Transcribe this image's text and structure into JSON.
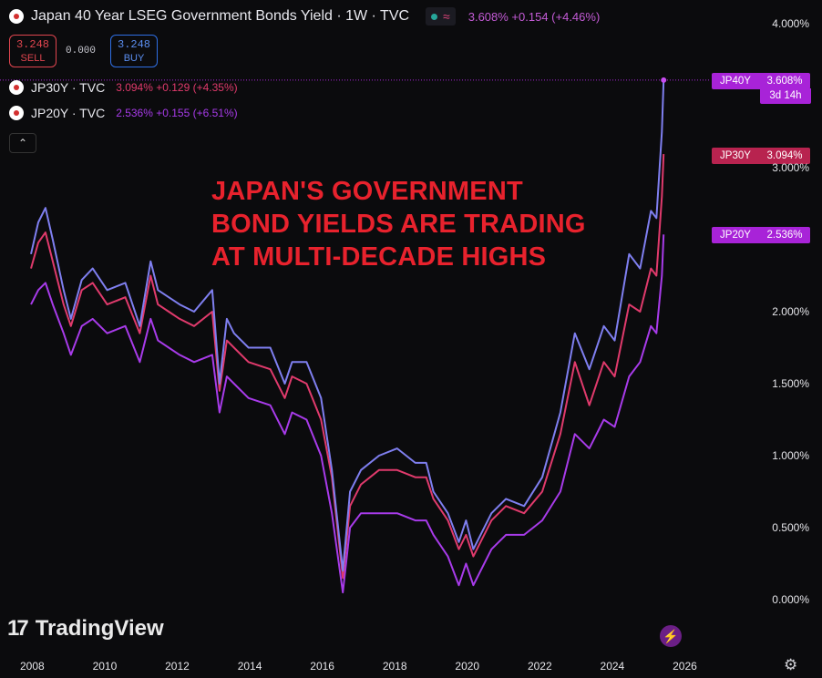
{
  "header": {
    "title": "Japan 40 Year LSEG Government Bonds Yield · 1W · TVC",
    "status_icon": "≈",
    "quote": "3.608% +0.154 (+4.46%)"
  },
  "trade": {
    "sell_price": "3.248",
    "sell_label": "SELL",
    "spread": "0.000",
    "buy_price": "3.248",
    "buy_label": "BUY"
  },
  "legend": [
    {
      "symbol": "JP30Y · TVC",
      "value": "3.094% +0.129 (+4.35%)",
      "color": "#e03a6c"
    },
    {
      "symbol": "JP20Y · TVC",
      "value": "2.536% +0.155 (+6.51%)",
      "color": "#a83bea"
    }
  ],
  "collapse_icon": "chevron-up-icon",
  "annotation": [
    "JAPAN'S GOVERNMENT",
    "BOND YIELDS ARE TRADING",
    "AT MULTI-DECADE HIGHS"
  ],
  "price_tags": [
    {
      "symbol": "JP40Y",
      "value": "3.608%",
      "sub": "3d 14h",
      "color": "#a823d8",
      "y_value": 3.608
    },
    {
      "symbol": "JP30Y",
      "value": "3.094%",
      "color": "#b8234f",
      "y_value": 3.094
    },
    {
      "symbol": "JP20Y",
      "value": "2.536%",
      "color": "#a823d8",
      "y_value": 2.536
    }
  ],
  "watermark": "TradingView",
  "icons": {
    "settings": "gear-icon",
    "flash": "lightning-icon"
  },
  "chart_data": {
    "type": "line",
    "title": "Japan 40 Year LSEG Government Bonds Yield · 1W · TVC",
    "xlabel": "",
    "ylabel": "",
    "x_ticks": [
      "2008",
      "2010",
      "2012",
      "2014",
      "2016",
      "2018",
      "2020",
      "2022",
      "2024",
      "2026"
    ],
    "y_ticks": [
      "4.000%",
      "3.000%",
      "2.000%",
      "1.500%",
      "1.000%",
      "0.500%",
      "0.000%"
    ],
    "xlim": [
      2007.9,
      2026.3
    ],
    "ylim": [
      -0.2,
      4.1
    ],
    "grid": false,
    "series": [
      {
        "name": "JP40Y",
        "color": "#7f7ff0",
        "x": [
          2007.9,
          2008.1,
          2008.3,
          2008.5,
          2008.8,
          2009.0,
          2009.3,
          2009.6,
          2010.0,
          2010.5,
          2010.9,
          2011.2,
          2011.4,
          2011.7,
          2012.0,
          2012.4,
          2012.9,
          2013.1,
          2013.3,
          2013.5,
          2013.9,
          2014.5,
          2014.9,
          2015.1,
          2015.5,
          2015.9,
          2016.2,
          2016.5,
          2016.7,
          2017.0,
          2017.5,
          2018.0,
          2018.5,
          2018.8,
          2019.0,
          2019.4,
          2019.7,
          2019.9,
          2020.1,
          2020.6,
          2021.0,
          2021.5,
          2022.0,
          2022.5,
          2022.9,
          2023.3,
          2023.7,
          2024.0,
          2024.4,
          2024.7,
          2025.0,
          2025.15,
          2025.3,
          2025.35
        ],
        "y": [
          2.4,
          2.62,
          2.72,
          2.5,
          2.15,
          1.95,
          2.22,
          2.3,
          2.15,
          2.2,
          1.9,
          2.35,
          2.15,
          2.1,
          2.05,
          2.0,
          2.15,
          1.5,
          1.95,
          1.85,
          1.75,
          1.75,
          1.5,
          1.65,
          1.65,
          1.4,
          0.9,
          0.2,
          0.75,
          0.9,
          1.0,
          1.05,
          0.95,
          0.95,
          0.75,
          0.6,
          0.4,
          0.55,
          0.35,
          0.6,
          0.7,
          0.65,
          0.85,
          1.3,
          1.85,
          1.6,
          1.9,
          1.8,
          2.4,
          2.3,
          2.7,
          2.65,
          3.25,
          3.608
        ]
      },
      {
        "name": "JP30Y",
        "color": "#e03a6c",
        "x": [
          2007.9,
          2008.1,
          2008.3,
          2008.5,
          2008.8,
          2009.0,
          2009.3,
          2009.6,
          2010.0,
          2010.5,
          2010.9,
          2011.2,
          2011.4,
          2011.7,
          2012.0,
          2012.4,
          2012.9,
          2013.1,
          2013.3,
          2013.5,
          2013.9,
          2014.5,
          2014.9,
          2015.1,
          2015.5,
          2015.9,
          2016.2,
          2016.5,
          2016.7,
          2017.0,
          2017.5,
          2018.0,
          2018.5,
          2018.8,
          2019.0,
          2019.4,
          2019.7,
          2019.9,
          2020.1,
          2020.6,
          2021.0,
          2021.5,
          2022.0,
          2022.5,
          2022.9,
          2023.3,
          2023.7,
          2024.0,
          2024.4,
          2024.7,
          2025.0,
          2025.15,
          2025.3,
          2025.35
        ],
        "y": [
          2.3,
          2.48,
          2.55,
          2.35,
          2.05,
          1.9,
          2.15,
          2.2,
          2.05,
          2.1,
          1.85,
          2.25,
          2.05,
          2.0,
          1.95,
          1.9,
          2.0,
          1.45,
          1.8,
          1.75,
          1.65,
          1.6,
          1.4,
          1.55,
          1.5,
          1.25,
          0.85,
          0.15,
          0.65,
          0.8,
          0.9,
          0.9,
          0.85,
          0.85,
          0.7,
          0.55,
          0.35,
          0.45,
          0.3,
          0.55,
          0.65,
          0.6,
          0.75,
          1.15,
          1.65,
          1.35,
          1.65,
          1.55,
          2.05,
          2.0,
          2.3,
          2.25,
          2.8,
          3.094
        ]
      },
      {
        "name": "JP20Y",
        "color": "#a83bea",
        "x": [
          2007.9,
          2008.1,
          2008.3,
          2008.5,
          2008.8,
          2009.0,
          2009.3,
          2009.6,
          2010.0,
          2010.5,
          2010.9,
          2011.2,
          2011.4,
          2011.7,
          2012.0,
          2012.4,
          2012.9,
          2013.1,
          2013.3,
          2013.5,
          2013.9,
          2014.5,
          2014.9,
          2015.1,
          2015.5,
          2015.9,
          2016.2,
          2016.5,
          2016.7,
          2017.0,
          2017.5,
          2018.0,
          2018.5,
          2018.8,
          2019.0,
          2019.4,
          2019.7,
          2019.9,
          2020.1,
          2020.6,
          2021.0,
          2021.5,
          2022.0,
          2022.5,
          2022.9,
          2023.3,
          2023.7,
          2024.0,
          2024.4,
          2024.7,
          2025.0,
          2025.15,
          2025.3,
          2025.35
        ],
        "y": [
          2.05,
          2.15,
          2.2,
          2.05,
          1.85,
          1.7,
          1.9,
          1.95,
          1.85,
          1.9,
          1.65,
          1.95,
          1.8,
          1.75,
          1.7,
          1.65,
          1.7,
          1.3,
          1.55,
          1.5,
          1.4,
          1.35,
          1.15,
          1.3,
          1.25,
          1.0,
          0.6,
          0.05,
          0.5,
          0.6,
          0.6,
          0.6,
          0.55,
          0.55,
          0.45,
          0.3,
          0.1,
          0.25,
          0.1,
          0.35,
          0.45,
          0.45,
          0.55,
          0.75,
          1.15,
          1.05,
          1.25,
          1.2,
          1.55,
          1.65,
          1.9,
          1.85,
          2.25,
          2.536
        ]
      }
    ]
  }
}
